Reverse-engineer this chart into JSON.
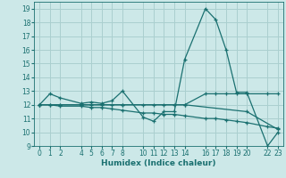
{
  "xlabel": "Humidex (Indice chaleur)",
  "bg_color": "#cce8e8",
  "line_color": "#1a7070",
  "grid_color": "#aacfcf",
  "xlim": [
    -0.5,
    23.5
  ],
  "ylim": [
    9,
    19.5
  ],
  "yticks": [
    9,
    10,
    11,
    12,
    13,
    14,
    15,
    16,
    17,
    18,
    19
  ],
  "xticks": [
    0,
    1,
    2,
    4,
    5,
    6,
    7,
    8,
    10,
    11,
    12,
    13,
    14,
    16,
    17,
    18,
    19,
    20,
    22,
    23
  ],
  "lines": [
    {
      "x": [
        0,
        1,
        2,
        4,
        5,
        6,
        7,
        8,
        10,
        11,
        12,
        13,
        14,
        16,
        17,
        18,
        19,
        20,
        22,
        23
      ],
      "y": [
        12.0,
        12.8,
        12.5,
        12.1,
        12.2,
        12.1,
        12.3,
        13.0,
        11.1,
        10.8,
        11.5,
        11.5,
        15.3,
        19.0,
        18.2,
        16.0,
        12.9,
        12.9,
        9.0,
        10.0
      ]
    },
    {
      "x": [
        0,
        1,
        2,
        4,
        5,
        6,
        7,
        8,
        10,
        11,
        12,
        13,
        14,
        16,
        17,
        18,
        19,
        20,
        22,
        23
      ],
      "y": [
        12.0,
        12.0,
        12.0,
        12.0,
        12.0,
        12.0,
        12.0,
        12.0,
        12.0,
        12.0,
        12.0,
        12.0,
        12.0,
        12.8,
        12.8,
        12.8,
        12.8,
        12.8,
        12.8,
        12.8
      ]
    },
    {
      "x": [
        0,
        1,
        2,
        4,
        5,
        6,
        7,
        8,
        10,
        11,
        12,
        13,
        14,
        16,
        17,
        18,
        19,
        20,
        22,
        23
      ],
      "y": [
        12.0,
        12.0,
        11.9,
        11.9,
        11.8,
        11.8,
        11.7,
        11.6,
        11.4,
        11.4,
        11.3,
        11.3,
        11.2,
        11.0,
        11.0,
        10.9,
        10.8,
        10.7,
        10.4,
        10.3
      ]
    },
    {
      "x": [
        0,
        2,
        4,
        8,
        14,
        20,
        23
      ],
      "y": [
        12.0,
        12.0,
        12.0,
        12.0,
        12.0,
        11.5,
        10.2
      ]
    }
  ]
}
